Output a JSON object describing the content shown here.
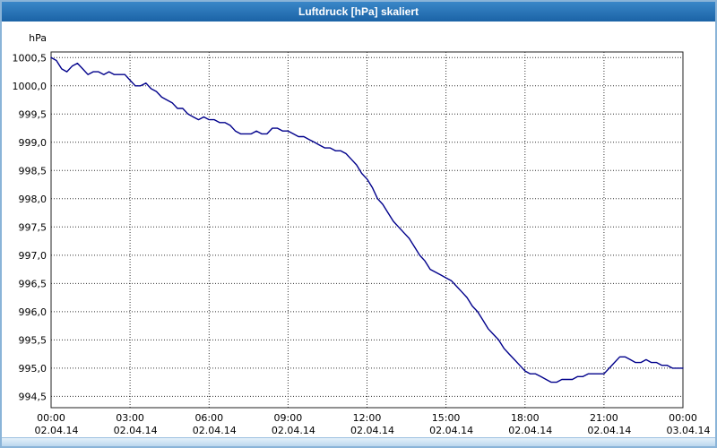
{
  "window": {
    "title": "Luftdruck [hPa] skaliert"
  },
  "chart_data": {
    "type": "line",
    "title": "Luftdruck [hPa] skaliert",
    "xlabel": "",
    "ylabel": "hPa",
    "ylim": [
      994.5,
      1000.5
    ],
    "ytick_step": 0.5,
    "ytick_labels": [
      "1000,5",
      "1000,0",
      "999,5",
      "999,0",
      "998,5",
      "998,0",
      "997,5",
      "997,0",
      "996,5",
      "996,0",
      "995,5",
      "995,0",
      "994,5"
    ],
    "ytick_values": [
      1000.5,
      1000.0,
      999.5,
      999.0,
      998.5,
      998.0,
      997.5,
      997.0,
      996.5,
      996.0,
      995.5,
      995.0,
      994.5
    ],
    "xlim": [
      0,
      24
    ],
    "xtick_hours": [
      0,
      3,
      6,
      9,
      12,
      15,
      18,
      21,
      24
    ],
    "xtick_labels": [
      "00:00",
      "03:00",
      "06:00",
      "09:00",
      "12:00",
      "15:00",
      "18:00",
      "21:00",
      "00:00"
    ],
    "xtick_dates": [
      "02.04.14",
      "02.04.14",
      "02.04.14",
      "02.04.14",
      "02.04.14",
      "02.04.14",
      "02.04.14",
      "02.04.14",
      "03.04.14"
    ],
    "grid": "dotted",
    "legend": "none",
    "line_color": "#00008b",
    "series": [
      {
        "name": "Luftdruck",
        "x": [
          0,
          0.2,
          0.4,
          0.6,
          0.8,
          1.0,
          1.2,
          1.4,
          1.6,
          1.8,
          2.0,
          2.2,
          2.4,
          2.6,
          2.8,
          3.0,
          3.2,
          3.4,
          3.6,
          3.8,
          4.0,
          4.2,
          4.4,
          4.6,
          4.8,
          5.0,
          5.2,
          5.4,
          5.6,
          5.8,
          6.0,
          6.2,
          6.4,
          6.6,
          6.8,
          7.0,
          7.2,
          7.4,
          7.6,
          7.8,
          8.0,
          8.2,
          8.4,
          8.6,
          8.8,
          9.0,
          9.2,
          9.4,
          9.6,
          9.8,
          10.0,
          10.2,
          10.4,
          10.6,
          10.8,
          11.0,
          11.2,
          11.4,
          11.6,
          11.8,
          12.0,
          12.2,
          12.4,
          12.6,
          12.8,
          13.0,
          13.2,
          13.4,
          13.6,
          13.8,
          14.0,
          14.2,
          14.4,
          14.6,
          14.8,
          15.0,
          15.2,
          15.4,
          15.6,
          15.8,
          16.0,
          16.2,
          16.4,
          16.6,
          16.8,
          17.0,
          17.2,
          17.4,
          17.6,
          17.8,
          18.0,
          18.2,
          18.4,
          18.6,
          18.8,
          19.0,
          19.2,
          19.4,
          19.6,
          19.8,
          20.0,
          20.2,
          20.4,
          20.6,
          20.8,
          21.0,
          21.2,
          21.4,
          21.6,
          21.8,
          22.0,
          22.2,
          22.4,
          22.6,
          22.8,
          23.0,
          23.2,
          23.4,
          23.6,
          23.8,
          24.0
        ],
        "y": [
          1000.5,
          1000.45,
          1000.3,
          1000.25,
          1000.35,
          1000.4,
          1000.3,
          1000.2,
          1000.25,
          1000.25,
          1000.2,
          1000.25,
          1000.2,
          1000.2,
          1000.2,
          1000.1,
          1000.0,
          1000.0,
          1000.05,
          999.95,
          999.9,
          999.8,
          999.75,
          999.7,
          999.6,
          999.6,
          999.5,
          999.45,
          999.4,
          999.45,
          999.4,
          999.4,
          999.35,
          999.35,
          999.3,
          999.2,
          999.15,
          999.15,
          999.15,
          999.2,
          999.15,
          999.15,
          999.25,
          999.25,
          999.2,
          999.2,
          999.15,
          999.1,
          999.1,
          999.05,
          999.0,
          998.95,
          998.9,
          998.9,
          998.85,
          998.85,
          998.8,
          998.7,
          998.6,
          998.45,
          998.35,
          998.2,
          998.0,
          997.9,
          997.75,
          997.6,
          997.5,
          997.4,
          997.3,
          997.15,
          997.0,
          996.9,
          996.75,
          996.7,
          996.65,
          996.6,
          996.55,
          996.45,
          996.35,
          996.25,
          996.1,
          996.0,
          995.85,
          995.7,
          995.6,
          995.5,
          995.35,
          995.25,
          995.15,
          995.05,
          994.95,
          994.9,
          994.9,
          994.85,
          994.8,
          994.75,
          994.75,
          994.8,
          994.8,
          994.8,
          994.85,
          994.85,
          994.9,
          994.9,
          994.9,
          994.9,
          995.0,
          995.1,
          995.2,
          995.2,
          995.15,
          995.1,
          995.1,
          995.15,
          995.1,
          995.1,
          995.05,
          995.05,
          995.0,
          995.0,
          995.0
        ]
      }
    ]
  },
  "colors": {
    "titlebar_top": "#3a87c8",
    "titlebar_bottom": "#1b63a6",
    "window_border": "#8ab4d8",
    "plot_border": "#222222",
    "gridline": "#333333",
    "line": "#00008b",
    "background": "#ffffff"
  }
}
